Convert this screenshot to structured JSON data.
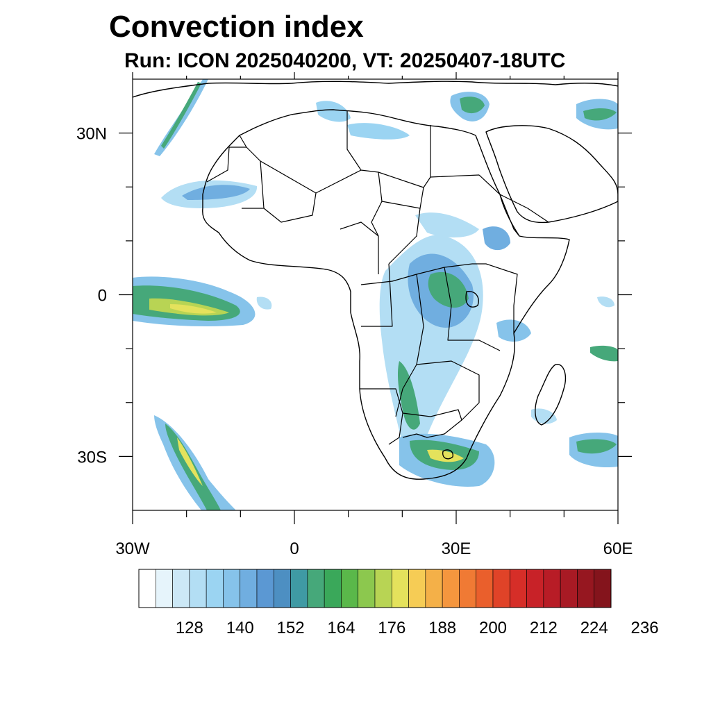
{
  "title": "Convection index",
  "subtitle": "Run: ICON 2025040200,  VT: 20250407-18UTC",
  "map": {
    "lon_range": [
      -30,
      60
    ],
    "lat_range": [
      -40,
      40
    ],
    "lat_ticks": [
      {
        "value": 30,
        "label": "30N"
      },
      {
        "value": 0,
        "label": "0"
      },
      {
        "value": -30,
        "label": "30S"
      }
    ],
    "lon_ticks": [
      {
        "value": -30,
        "label": "30W"
      },
      {
        "value": 0,
        "label": "0"
      },
      {
        "value": 30,
        "label": "30E"
      },
      {
        "value": 60,
        "label": "60E"
      }
    ]
  },
  "colorbar": {
    "colors": [
      "#ffffff",
      "#e6f4fb",
      "#cce8f6",
      "#b3def4",
      "#9bd4f2",
      "#86c3ea",
      "#70aee0",
      "#5b98d3",
      "#4d8fc2",
      "#3f9aa4",
      "#46a87a",
      "#3aa85a",
      "#5ab84a",
      "#8cc84e",
      "#b8d454",
      "#e4e25c",
      "#f6cc55",
      "#f4b048",
      "#f5963e",
      "#f07a34",
      "#ea5f2c",
      "#e04328",
      "#d62e28",
      "#c82228",
      "#b81c26",
      "#a81a24",
      "#961720",
      "#84141c"
    ],
    "labels": [
      "128",
      "140",
      "152",
      "164",
      "176",
      "188",
      "200",
      "212",
      "224",
      "236"
    ]
  }
}
